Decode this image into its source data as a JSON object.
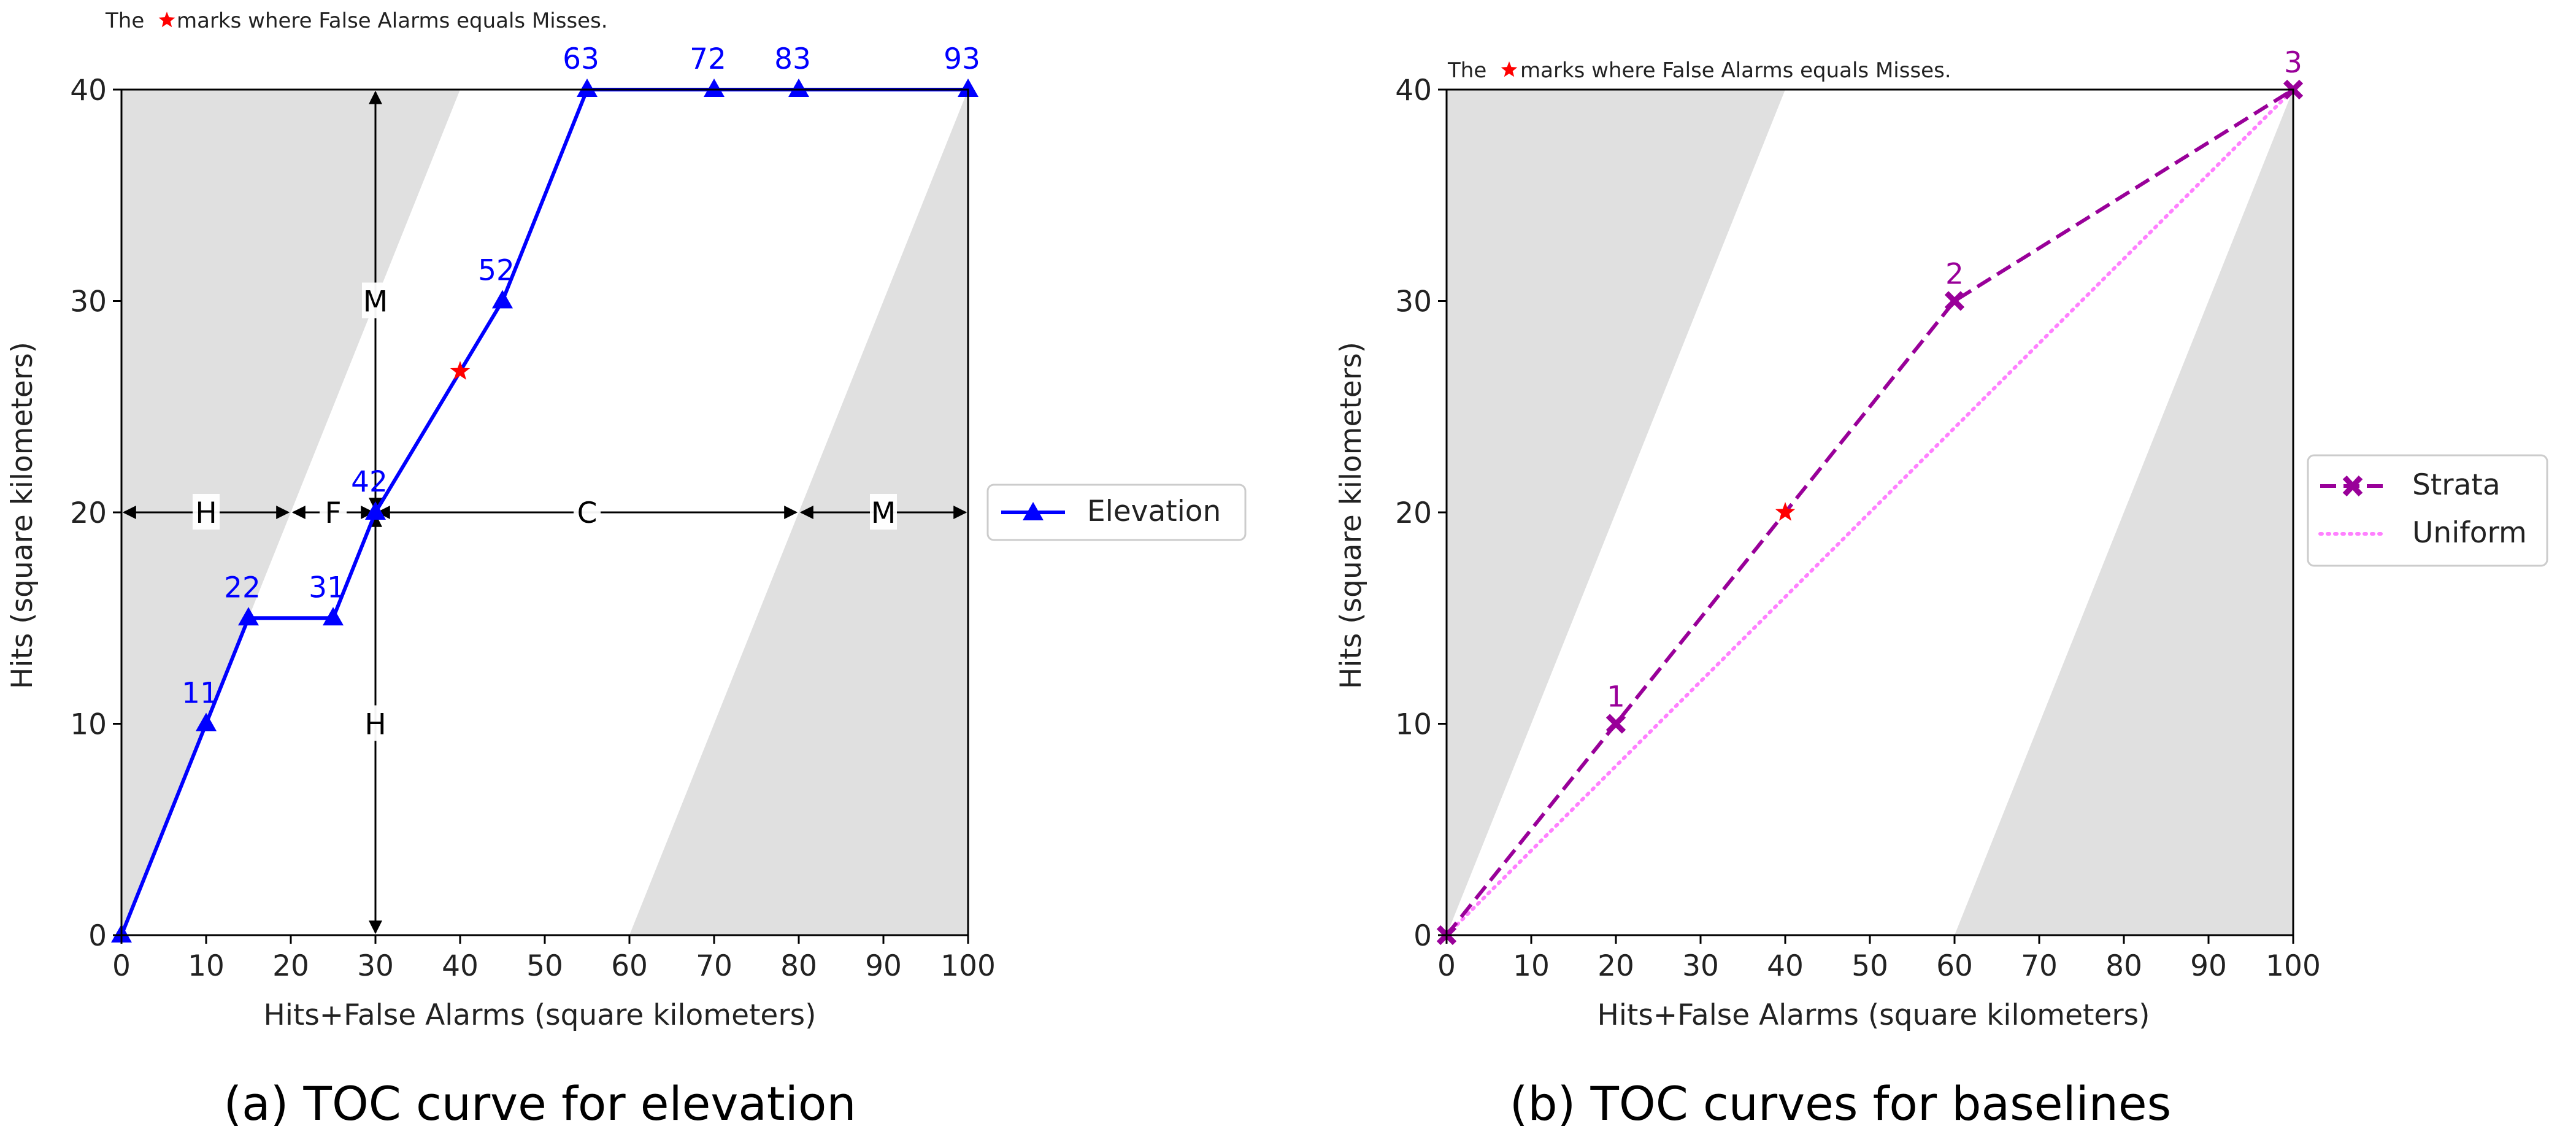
{
  "chart_data": [
    {
      "type": "line",
      "panel": "a",
      "caption": "(a) TOC curve for elevation",
      "note": {
        "prefix": "The",
        "suffix": "marks where False Alarms equals Misses."
      },
      "xlabel": "Hits+False Alarms (square kilometers)",
      "ylabel": "Hits (square kilometers)",
      "xlim": [
        0,
        100
      ],
      "ylim": [
        0,
        40
      ],
      "xticks": [
        0,
        10,
        20,
        30,
        40,
        50,
        60,
        70,
        80,
        90,
        100
      ],
      "yticks": [
        0,
        10,
        20,
        30,
        40
      ],
      "legend": {
        "position": "outside-right",
        "entries": [
          {
            "label": "Elevation",
            "color": "#0000ff",
            "style": "solid",
            "marker": "triangle"
          }
        ]
      },
      "series": [
        {
          "name": "Elevation",
          "color": "#0000ff",
          "x": [
            0,
            10,
            15,
            25,
            30,
            45,
            55,
            70,
            80,
            100
          ],
          "y": [
            0,
            10,
            15,
            15,
            20,
            30,
            40,
            40,
            40,
            40
          ],
          "point_labels": [
            "",
            "11",
            "22",
            "31",
            "42",
            "52",
            "63",
            "72",
            "83",
            "93"
          ]
        }
      ],
      "star": {
        "x": 40,
        "y": 26.67,
        "color": "#ff0000"
      },
      "annotations": {
        "horizontal_y": 20,
        "vertical_x": 30,
        "labels": [
          "H",
          "F",
          "C",
          "M",
          "M",
          "H"
        ]
      },
      "shaded_regions": "gray"
    },
    {
      "type": "line",
      "panel": "b",
      "caption": "(b) TOC curves for baselines",
      "note": {
        "prefix": "The",
        "suffix": "marks where False Alarms equals Misses."
      },
      "xlabel": "Hits+False Alarms (square kilometers)",
      "ylabel": "Hits (square kilometers)",
      "xlim": [
        0,
        100
      ],
      "ylim": [
        0,
        40
      ],
      "xticks": [
        0,
        10,
        20,
        30,
        40,
        50,
        60,
        70,
        80,
        90,
        100
      ],
      "yticks": [
        0,
        10,
        20,
        30,
        40
      ],
      "legend": {
        "position": "outside-right",
        "entries": [
          {
            "label": "Strata",
            "color": "#990099",
            "style": "dashed",
            "marker": "x"
          },
          {
            "label": "Uniform",
            "color": "#ff80ff",
            "style": "dotted",
            "marker": "none"
          }
        ]
      },
      "series": [
        {
          "name": "Strata",
          "color": "#990099",
          "x": [
            0,
            20,
            60,
            100
          ],
          "y": [
            0,
            10,
            30,
            40
          ],
          "point_labels": [
            "",
            "1",
            "2",
            "3"
          ]
        },
        {
          "name": "Uniform",
          "color": "#ff80ff",
          "x": [
            0,
            100
          ],
          "y": [
            0,
            40
          ],
          "point_labels": []
        }
      ],
      "star": {
        "x": 40,
        "y": 20,
        "color": "#ff0000"
      },
      "shaded_regions": "gray"
    }
  ]
}
